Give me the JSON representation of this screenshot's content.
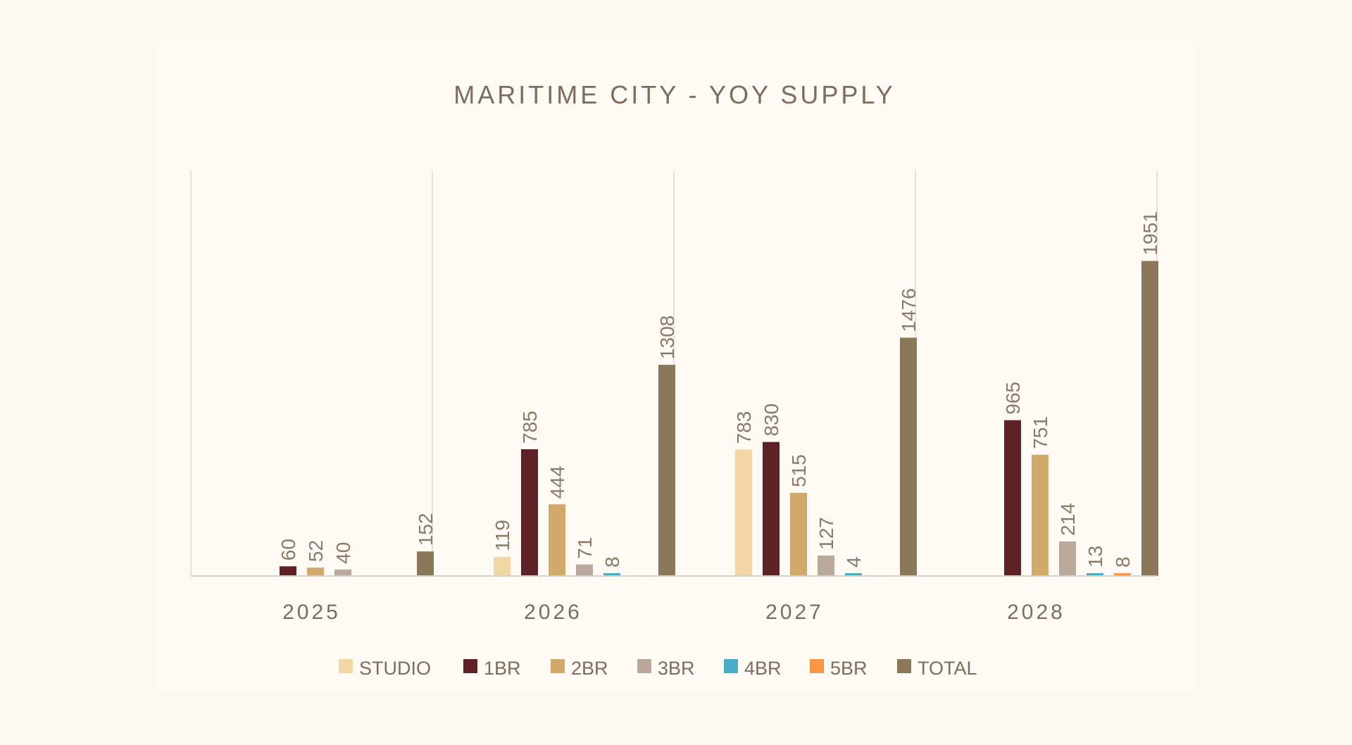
{
  "chart_data": {
    "type": "bar",
    "title": "MARITIME CITY - YOY SUPPLY",
    "categories": [
      "2025",
      "2026",
      "2027",
      "2028"
    ],
    "xlabel": "",
    "ylabel": "",
    "ylim": [
      0,
      2200
    ],
    "grid": "vertical category separators",
    "legend_position": "bottom",
    "series": [
      {
        "name": "STUDIO",
        "color": "#f0d7a4",
        "values": [
          null,
          119,
          783,
          null
        ]
      },
      {
        "name": "1BR",
        "color": "#5e2226",
        "values": [
          60,
          785,
          830,
          965
        ]
      },
      {
        "name": "2BR",
        "color": "#d3a96a",
        "values": [
          52,
          444,
          515,
          751
        ]
      },
      {
        "name": "3BR",
        "color": "#baa89c",
        "values": [
          40,
          71,
          127,
          214
        ]
      },
      {
        "name": "4BR",
        "color": "#4bacc6",
        "values": [
          null,
          8,
          4,
          13
        ]
      },
      {
        "name": "5BR",
        "color": "#f79646",
        "values": [
          null,
          null,
          null,
          8
        ]
      },
      {
        "name": "TOTAL",
        "color": "#8b7759",
        "values": [
          152,
          1308,
          1476,
          1951
        ]
      }
    ]
  }
}
